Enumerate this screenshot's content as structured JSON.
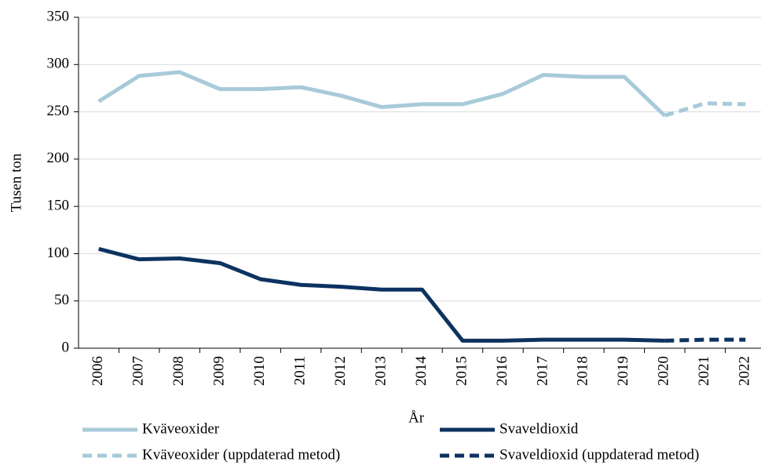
{
  "chart_data": {
    "type": "line",
    "x_label": "År",
    "y_label": "Tusen ton",
    "categories": [
      "2006",
      "2007",
      "2008",
      "2009",
      "2010",
      "2011",
      "2012",
      "2013",
      "2014",
      "2015",
      "2016",
      "2017",
      "2018",
      "2019",
      "2020",
      "2021",
      "2022"
    ],
    "series": [
      {
        "name": "Kväveoxider",
        "color": "#a8cad9",
        "dashed": false,
        "values": [
          261,
          288,
          292,
          274,
          274,
          276,
          267,
          255,
          258,
          258,
          269,
          289,
          287,
          287,
          246,
          null,
          null
        ]
      },
      {
        "name": "Svaveldioxid",
        "color": "#0c3260",
        "dashed": false,
        "values": [
          105,
          94,
          95,
          90,
          73,
          67,
          65,
          62,
          62,
          8,
          8,
          9,
          9,
          9,
          8,
          null,
          null
        ]
      },
      {
        "name": "Kväveoxider (uppdaterad metod)",
        "color": "#a8cad9",
        "dashed": true,
        "values": [
          null,
          null,
          null,
          null,
          null,
          null,
          null,
          null,
          null,
          null,
          null,
          null,
          null,
          null,
          246,
          259,
          258
        ]
      },
      {
        "name": "Svaveldioxid (uppdaterad metod)",
        "color": "#0c3260",
        "dashed": true,
        "values": [
          null,
          null,
          null,
          null,
          null,
          null,
          null,
          null,
          null,
          null,
          null,
          null,
          null,
          null,
          8,
          9,
          9
        ]
      }
    ],
    "ylim": [
      0,
      350
    ],
    "yticks": [
      0,
      50,
      100,
      150,
      200,
      250,
      300,
      350
    ],
    "grid": true,
    "legend": "bottom"
  }
}
